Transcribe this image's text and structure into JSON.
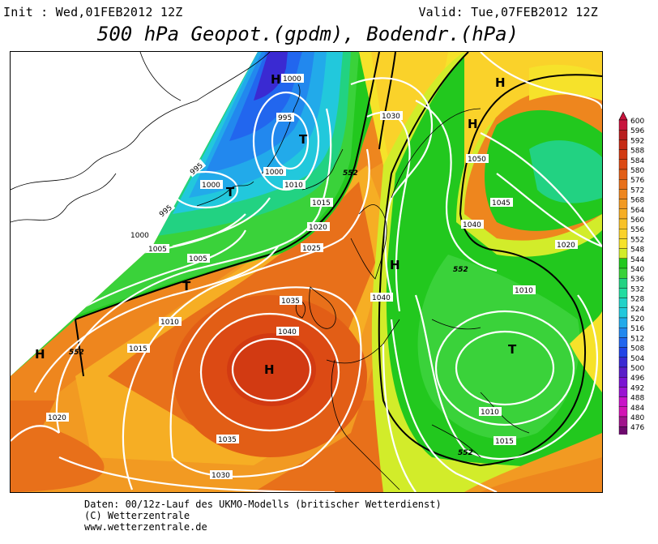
{
  "header": {
    "init": "Init : Wed,01FEB2012 12Z",
    "valid": "Valid: Tue,07FEB2012 12Z",
    "title": "500 hPa Geopot.(gpdm), Bodendr.(hPa)"
  },
  "pressure_labels": {
    "p1000a": "1000",
    "p1000b": "1000",
    "p1000c": "1000",
    "p1000d": "1000",
    "p995a": "995",
    "p995b": "995",
    "p995c": "995",
    "p1005a": "1005",
    "p1005b": "1005",
    "p1010a": "1010",
    "p1010b": "1010",
    "p1010c": "1010",
    "p1010d": "1010",
    "p1015a": "1015",
    "p1015b": "1015",
    "p1015c": "1015",
    "p1020a": "1020",
    "p1020b": "1020",
    "p1020c": "1020",
    "p1025": "1025",
    "p1030a": "1030",
    "p1030b": "1030",
    "p1035a": "1035",
    "p1035b": "1035",
    "p1040a": "1040",
    "p1040b": "1040",
    "p1040c": "1040",
    "p1045": "1045",
    "p1050": "1050"
  },
  "geopot_labels": {
    "g552a": "552",
    "g552b": "552",
    "g552c": "552",
    "g552d": "552"
  },
  "centers": {
    "high": "H",
    "low": "T"
  },
  "colorbar": {
    "values": [
      "600",
      "596",
      "592",
      "588",
      "584",
      "580",
      "576",
      "572",
      "568",
      "564",
      "560",
      "556",
      "552",
      "548",
      "544",
      "540",
      "536",
      "532",
      "528",
      "524",
      "520",
      "516",
      "512",
      "508",
      "504",
      "500",
      "496",
      "492",
      "488",
      "484",
      "480",
      "476"
    ],
    "colors": [
      "#c8143c",
      "#b81e1e",
      "#c62a14",
      "#d23a12",
      "#dc4a14",
      "#e25e16",
      "#e8701a",
      "#ee861e",
      "#f29a22",
      "#f6ae24",
      "#f8c228",
      "#fad22a",
      "#f6e22a",
      "#d2ec2a",
      "#22c81e",
      "#3ad23a",
      "#22d282",
      "#22dca0",
      "#22d2c8",
      "#22c8dc",
      "#22aaea",
      "#2288ee",
      "#2266ee",
      "#2244e6",
      "#3a2ad2",
      "#5a1ec8",
      "#7a14d2",
      "#9a14d2",
      "#c814c8",
      "#d214b4",
      "#a0148c",
      "#6e0a6e"
    ]
  },
  "footer": {
    "line1": "Daten: 00/12z-Lauf des UKMO-Modells (britischer Wetterdienst)",
    "line2": "(C) Wetterzentrale",
    "line3": "www.wetterzentrale.de"
  }
}
